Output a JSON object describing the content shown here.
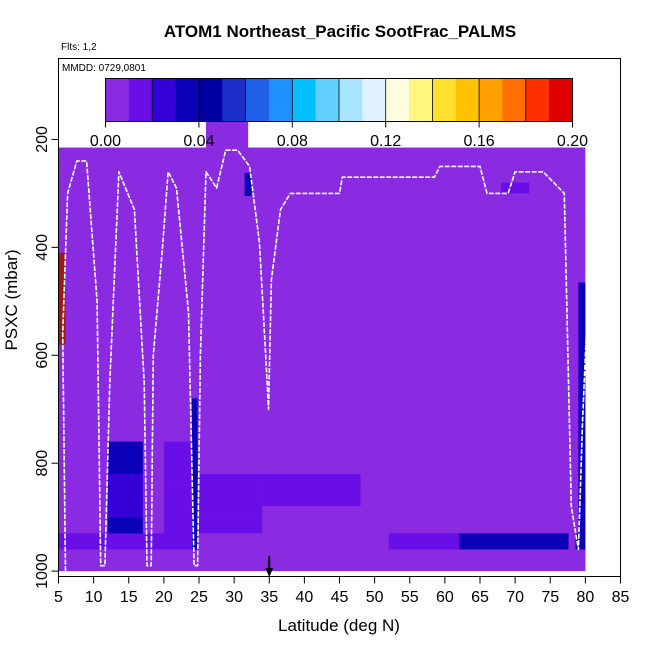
{
  "chart_data": {
    "type": "heatmap",
    "title": "ATOM1 Northeast_Pacific SootFrac_PALMS",
    "subtitle_flights": "Flts: 1,2",
    "subtitle_dates": "MMDD: 0729,0801",
    "xlabel": "Latitude (deg N)",
    "ylabel": "PSXC (mbar)",
    "xlim": [
      5,
      85
    ],
    "ylim": [
      1010,
      50
    ],
    "x_ticks": [
      5,
      10,
      15,
      20,
      25,
      30,
      35,
      40,
      45,
      50,
      55,
      60,
      65,
      70,
      75,
      80,
      85
    ],
    "y_ticks": [
      200,
      400,
      600,
      800,
      1000
    ],
    "colorbar": {
      "min": 0.0,
      "max": 0.2,
      "tick_values": [
        0.0,
        0.04,
        0.08,
        0.12,
        0.16,
        0.2
      ],
      "tick_labels": [
        "0.00",
        "0.04",
        "0.08",
        "0.12",
        "0.16",
        "0.20"
      ],
      "n_bins": 20,
      "colors": [
        "#8a2be2",
        "#6a0ee8",
        "#3500d8",
        "#0a00b8",
        "#0000a0",
        "#1c2fcb",
        "#2060e8",
        "#1e90ff",
        "#00bfff",
        "#60d0ff",
        "#a8e4ff",
        "#dff3ff",
        "#fffde0",
        "#fff680",
        "#ffe030",
        "#ffc000",
        "#ffa000",
        "#ff7000",
        "#ff3000",
        "#e00000",
        "#a01818"
      ]
    },
    "marker_latitude": 35,
    "cells": [
      {
        "lat": [
          5,
          80
        ],
        "p": [
          215,
          1000
        ],
        "v": 0.001
      },
      {
        "lat": [
          5,
          6
        ],
        "p": [
          410,
          580
        ],
        "v": 0.2
      },
      {
        "lat": [
          6,
          7
        ],
        "p": [
          260,
          960
        ],
        "v": 0.002
      },
      {
        "lat": [
          26,
          32
        ],
        "p": [
          165,
          215
        ],
        "v": 0.001
      },
      {
        "lat": [
          45,
          60
        ],
        "p": [
          265,
          300
        ],
        "v": 0.006
      },
      {
        "lat": [
          60,
          75
        ],
        "p": [
          265,
          310
        ],
        "v": 0.004
      },
      {
        "lat": [
          68,
          72
        ],
        "p": [
          280,
          300
        ],
        "v": 0.016
      },
      {
        "lat": [
          75,
          77
        ],
        "p": [
          215,
          300
        ],
        "v": 0.01
      },
      {
        "lat": [
          31.5,
          32.5
        ],
        "p": [
          262,
          305
        ],
        "v": 0.03
      },
      {
        "lat": [
          8,
          11
        ],
        "p": [
          500,
          600
        ],
        "v": 0.004
      },
      {
        "lat": [
          13,
          20
        ],
        "p": [
          500,
          600
        ],
        "v": 0.005
      },
      {
        "lat": [
          35,
          49
        ],
        "p": [
          450,
          530
        ],
        "v": 0.006
      },
      {
        "lat": [
          53,
          60
        ],
        "p": [
          550,
          640
        ],
        "v": 0.006
      },
      {
        "lat": [
          62,
          68
        ],
        "p": [
          480,
          520
        ],
        "v": 0.005
      },
      {
        "lat": [
          73,
          78
        ],
        "p": [
          450,
          520
        ],
        "v": 0.005
      },
      {
        "lat": [
          30,
          44
        ],
        "p": [
          630,
          690
        ],
        "v": 0.005
      },
      {
        "lat": [
          30,
          45
        ],
        "p": [
          700,
          740
        ],
        "v": 0.004
      },
      {
        "lat": [
          12,
          17
        ],
        "p": [
          760,
          820
        ],
        "v": 0.03
      },
      {
        "lat": [
          12,
          17
        ],
        "p": [
          820,
          900
        ],
        "v": 0.026
      },
      {
        "lat": [
          12,
          17
        ],
        "p": [
          900,
          950
        ],
        "v": 0.03
      },
      {
        "lat": [
          20,
          24
        ],
        "p": [
          760,
          840
        ],
        "v": 0.012
      },
      {
        "lat": [
          20,
          24
        ],
        "p": [
          840,
          940
        ],
        "v": 0.02
      },
      {
        "lat": [
          24,
          24.8
        ],
        "p": [
          680,
          960
        ],
        "v": 0.04
      },
      {
        "lat": [
          25,
          34
        ],
        "p": [
          820,
          900
        ],
        "v": 0.02
      },
      {
        "lat": [
          34,
          48
        ],
        "p": [
          820,
          880
        ],
        "v": 0.014
      },
      {
        "lat": [
          48,
          63
        ],
        "p": [
          840,
          900
        ],
        "v": 0.01
      },
      {
        "lat": [
          25,
          34
        ],
        "p": [
          900,
          930
        ],
        "v": 0.014
      },
      {
        "lat": [
          34,
          55
        ],
        "p": [
          880,
          925
        ],
        "v": 0.01
      },
      {
        "lat": [
          25,
          52
        ],
        "p": [
          930,
          950
        ],
        "v": 0.008
      },
      {
        "lat": [
          5,
          12
        ],
        "p": [
          930,
          960
        ],
        "v": 0.014
      },
      {
        "lat": [
          12,
          24
        ],
        "p": [
          930,
          960
        ],
        "v": 0.016
      },
      {
        "lat": [
          52,
          62
        ],
        "p": [
          930,
          960
        ],
        "v": 0.02
      },
      {
        "lat": [
          62,
          79
        ],
        "p": [
          930,
          960
        ],
        "v": 0.04
      },
      {
        "lat": [
          79,
          80
        ],
        "p": [
          465,
          960
        ],
        "v": 0.04
      },
      {
        "lat": [
          77.6,
          78.6
        ],
        "p": [
          520,
          960
        ],
        "v": 0.006
      },
      {
        "lat": [
          5,
          80
        ],
        "p": [
          960,
          990
        ],
        "v": 0.0
      },
      {
        "lat": [
          5,
          11
        ],
        "p": [
          975,
          1000
        ],
        "v": 0.004
      }
    ],
    "flight_track": [
      [
        6,
        1000
      ],
      [
        5.6,
        560
      ],
      [
        6.3,
        300
      ],
      [
        7.6,
        240
      ],
      [
        9.0,
        240
      ],
      [
        10.5,
        500
      ],
      [
        11.0,
        990
      ],
      [
        11.6,
        990
      ],
      [
        12.3,
        650
      ],
      [
        13.6,
        260
      ],
      [
        15.8,
        330
      ],
      [
        17.2,
        650
      ],
      [
        17.6,
        990
      ],
      [
        18.2,
        990
      ],
      [
        18.5,
        600
      ],
      [
        19.8,
        400
      ],
      [
        20.6,
        260
      ],
      [
        21.8,
        290
      ],
      [
        23.5,
        520
      ],
      [
        24.3,
        990
      ],
      [
        24.8,
        990
      ],
      [
        25.2,
        600
      ],
      [
        26.0,
        260
      ],
      [
        27.5,
        290
      ],
      [
        28.8,
        220
      ],
      [
        30.5,
        220
      ],
      [
        32.2,
        250
      ],
      [
        33.6,
        390
      ],
      [
        34.5,
        600
      ],
      [
        34.9,
        700
      ],
      [
        35.3,
        460
      ],
      [
        36.6,
        330
      ],
      [
        38.0,
        300
      ],
      [
        45.0,
        300
      ],
      [
        45.4,
        270
      ],
      [
        58.5,
        270
      ],
      [
        59.3,
        250
      ],
      [
        65.0,
        250
      ],
      [
        66.0,
        300
      ],
      [
        69.0,
        300
      ],
      [
        70.0,
        260
      ],
      [
        74.0,
        260
      ],
      [
        77.0,
        300
      ],
      [
        78.0,
        880
      ],
      [
        79.0,
        960
      ],
      [
        79.6,
        720
      ],
      [
        80.4,
        480
      ]
    ]
  }
}
